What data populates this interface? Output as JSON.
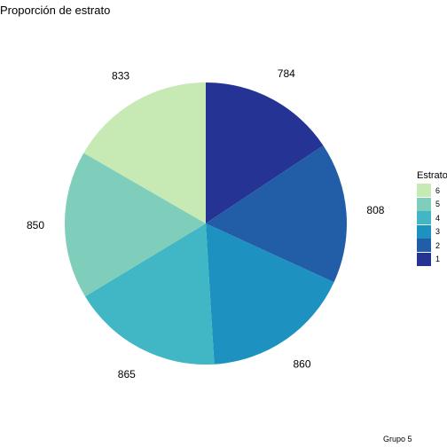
{
  "chart_data": {
    "type": "pie",
    "title": "Proporción de estrato",
    "legend_title": "Estrato",
    "legend_position": "right",
    "slices": [
      {
        "label": "1",
        "value": 784,
        "color": "#253494"
      },
      {
        "label": "2",
        "value": 808,
        "color": "#225ea8"
      },
      {
        "label": "3",
        "value": 860,
        "color": "#1d91c0"
      },
      {
        "label": "4",
        "value": 865,
        "color": "#41b6c4"
      },
      {
        "label": "5",
        "value": 850,
        "color": "#7fcdbb"
      },
      {
        "label": "6",
        "value": 833,
        "color": "#c7e9b4"
      }
    ],
    "legend_order": [
      "6",
      "5",
      "4",
      "3",
      "2",
      "1"
    ],
    "caption": "Grupo 5"
  }
}
